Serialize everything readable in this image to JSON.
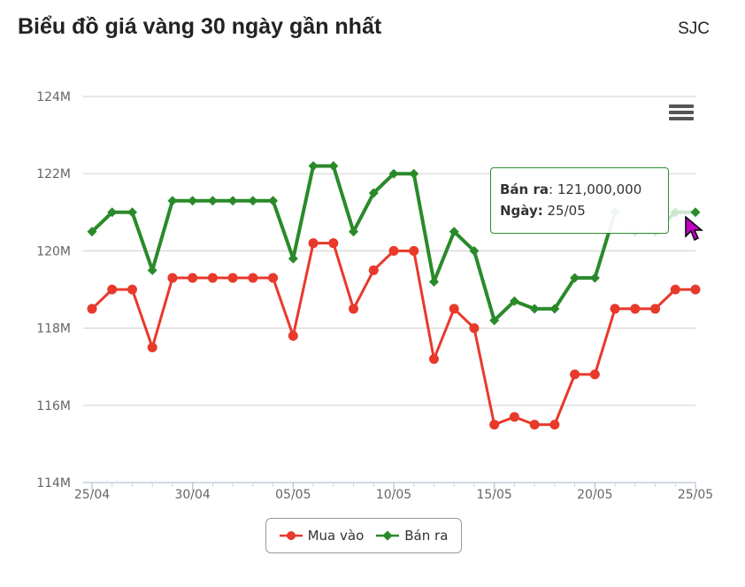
{
  "header": {
    "title": "Biểu đồ giá vàng 30 ngày gần nhất",
    "source": "SJC"
  },
  "menu": {
    "icon": "hamburger-menu-icon"
  },
  "chart_data": {
    "type": "line",
    "title": "Biểu đồ giá vàng 30 ngày gần nhất",
    "xlabel": "",
    "ylabel": "",
    "x": [
      "25/04",
      "26/04",
      "27/04",
      "28/04",
      "29/04",
      "30/04",
      "01/05",
      "02/05",
      "03/05",
      "04/05",
      "05/05",
      "06/05",
      "07/05",
      "08/05",
      "09/05",
      "10/05",
      "11/05",
      "12/05",
      "13/05",
      "14/05",
      "15/05",
      "16/05",
      "17/05",
      "18/05",
      "19/05",
      "20/05",
      "21/05",
      "22/05",
      "23/05",
      "24/05",
      "25/05"
    ],
    "x_tick_labels": [
      "25/04",
      "30/04",
      "05/05",
      "10/05",
      "15/05",
      "20/05",
      "25/05"
    ],
    "y_tick_labels": [
      "114M",
      "116M",
      "118M",
      "120M",
      "122M",
      "124M"
    ],
    "ylim": [
      114000000,
      124000000
    ],
    "grid": true,
    "legend_position": "bottom",
    "series": [
      {
        "name": "Mua vào",
        "color": "#e8392b",
        "marker": "circle",
        "values": [
          118500000,
          119000000,
          119000000,
          117500000,
          119300000,
          119300000,
          119300000,
          119300000,
          119300000,
          119300000,
          117800000,
          120200000,
          120200000,
          118500000,
          119500000,
          120000000,
          120000000,
          117200000,
          118500000,
          118000000,
          115500000,
          115700000,
          115500000,
          115500000,
          116800000,
          116800000,
          118500000,
          118500000,
          118500000,
          119000000,
          119000000
        ]
      },
      {
        "name": "Bán ra",
        "color": "#2a8a2a",
        "marker": "diamond",
        "values": [
          120500000,
          121000000,
          121000000,
          119500000,
          121300000,
          121300000,
          121300000,
          121300000,
          121300000,
          121300000,
          119800000,
          122200000,
          122200000,
          120500000,
          121500000,
          122000000,
          122000000,
          119200000,
          120500000,
          120000000,
          118200000,
          118700000,
          118500000,
          118500000,
          119300000,
          119300000,
          121000000,
          120500000,
          120500000,
          121000000,
          121000000
        ]
      }
    ]
  },
  "tooltip": {
    "series_label": "Bán ra",
    "value_text": "121,000,000",
    "date_label": "Ngày:",
    "date_value": "25/05"
  }
}
